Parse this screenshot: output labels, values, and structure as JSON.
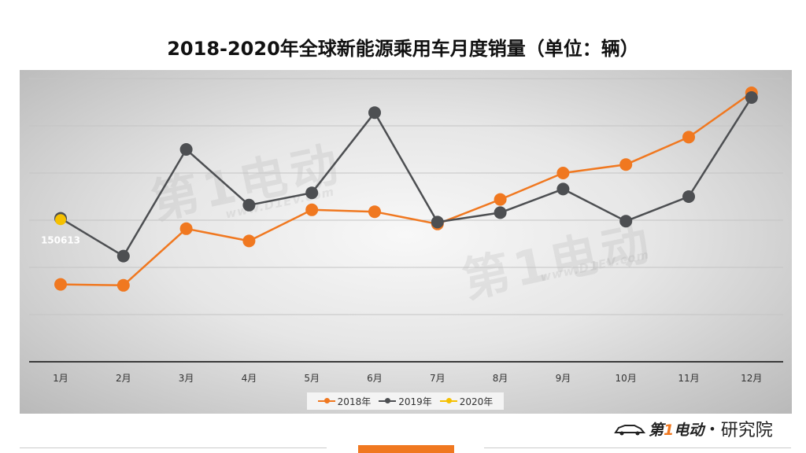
{
  "chart_data": {
    "type": "line",
    "title": "2018-2020年全球新能源乘用车月度销量（单位：辆）",
    "categories": [
      "1月",
      "2月",
      "3月",
      "4月",
      "5月",
      "6月",
      "7月",
      "8月",
      "9月",
      "10月",
      "11月",
      "12月"
    ],
    "ylim": [
      0,
      300000
    ],
    "grid": true,
    "legend_position": "bottom",
    "series": [
      {
        "name": "2018年",
        "color": "#f07820",
        "values": [
          82000,
          81000,
          141000,
          128000,
          161000,
          159000,
          146000,
          172000,
          200000,
          209000,
          238000,
          285000
        ]
      },
      {
        "name": "2019年",
        "color": "#4d4f52",
        "values": [
          152000,
          112000,
          225000,
          166000,
          179000,
          264000,
          148000,
          158000,
          183000,
          149000,
          175000,
          280000
        ]
      },
      {
        "name": "2020年",
        "color": "#f5c000",
        "values": [
          150613,
          null,
          null,
          null,
          null,
          null,
          null,
          null,
          null,
          null,
          null,
          null
        ]
      }
    ],
    "annotations": [
      {
        "series": "2020年",
        "index": 0,
        "label": "150613"
      }
    ]
  },
  "watermark": {
    "text": "第1电动",
    "url": "www.D1EV.com"
  },
  "logo": {
    "brand_prefix": "第",
    "brand_one": "1",
    "brand_suffix": "电动",
    "separator": "•",
    "sub": "研究院"
  }
}
